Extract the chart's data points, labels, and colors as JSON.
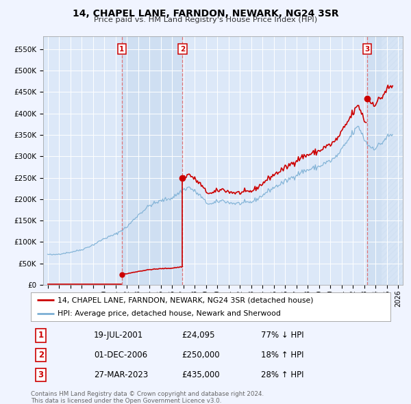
{
  "title": "14, CHAPEL LANE, FARNDON, NEWARK, NG24 3SR",
  "subtitle": "Price paid vs. HM Land Registry's House Price Index (HPI)",
  "ylabel_ticks": [
    "£0",
    "£50K",
    "£100K",
    "£150K",
    "£200K",
    "£250K",
    "£300K",
    "£350K",
    "£400K",
    "£450K",
    "£500K",
    "£550K"
  ],
  "ytick_values": [
    0,
    50000,
    100000,
    150000,
    200000,
    250000,
    300000,
    350000,
    400000,
    450000,
    500000,
    550000
  ],
  "ylim": [
    0,
    580000
  ],
  "xlim_start": 1994.6,
  "xlim_end": 2026.4,
  "background_color": "#f0f4ff",
  "plot_bg_color": "#dce8f8",
  "grid_color": "#ffffff",
  "hpi_color": "#7bafd4",
  "price_color": "#cc0000",
  "shade_color": "#c8daf0",
  "hatch_color": "#b8c8d8",
  "transaction_vline_color": "#e06060",
  "transactions": [
    {
      "date_num": 2001.55,
      "price": 24095,
      "label": "1",
      "date_str": "19-JUL-2001",
      "price_str": "£24,095",
      "rel": "77% ↓ HPI"
    },
    {
      "date_num": 2006.92,
      "price": 250000,
      "label": "2",
      "date_str": "01-DEC-2006",
      "price_str": "£250,000",
      "rel": "18% ↑ HPI"
    },
    {
      "date_num": 2023.24,
      "price": 435000,
      "label": "3",
      "date_str": "27-MAR-2023",
      "price_str": "£435,000",
      "rel": "28% ↑ HPI"
    }
  ],
  "legend_property": "14, CHAPEL LANE, FARNDON, NEWARK, NG24 3SR (detached house)",
  "legend_hpi": "HPI: Average price, detached house, Newark and Sherwood",
  "footer1": "Contains HM Land Registry data © Crown copyright and database right 2024.",
  "footer2": "This data is licensed under the Open Government Licence v3.0."
}
